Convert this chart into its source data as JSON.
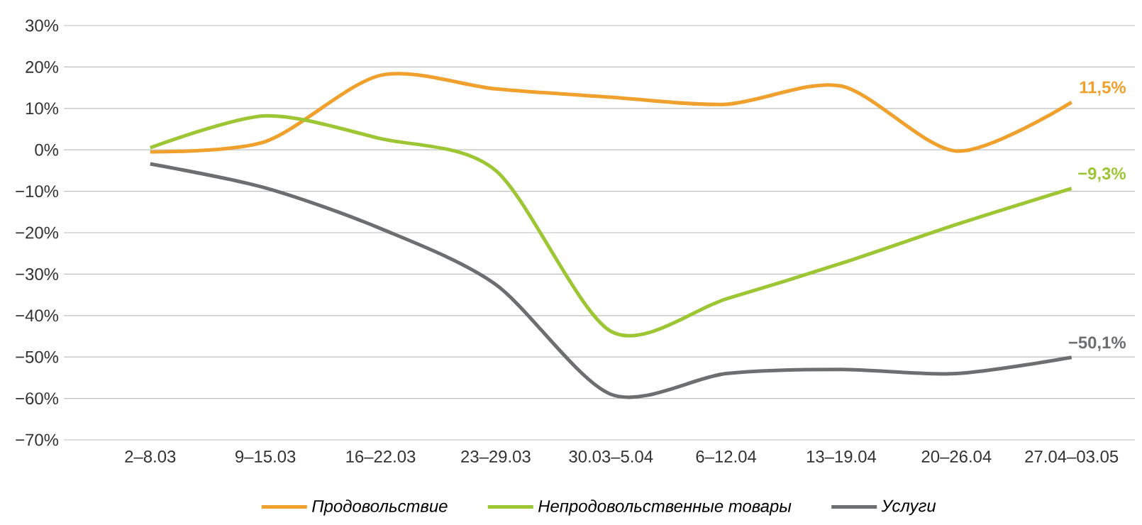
{
  "chart_data": {
    "type": "line",
    "categories": [
      "2–8.03",
      "9–15.03",
      "16–22.03",
      "23–29.03",
      "30.03–5.04",
      "6–12.04",
      "13–19.04",
      "20–26.04",
      "27.04–03.05"
    ],
    "series": [
      {
        "name": "Продовольствие",
        "color": "#f0a02c",
        "values": [
          -0.5,
          2,
          18,
          14.7,
          12.7,
          11,
          15.4,
          -0.3,
          11.5
        ],
        "value_labels": [
          null,
          null,
          null,
          null,
          null,
          null,
          null,
          null,
          "11,5%"
        ]
      },
      {
        "name": "Непродовольственные товары",
        "color": "#9cc634",
        "values": [
          0.5,
          8.2,
          2.7,
          -5,
          -43.8,
          -36,
          -27.4,
          -18,
          -9.3
        ],
        "value_labels": [
          null,
          null,
          null,
          null,
          null,
          null,
          null,
          null,
          "−9,3%"
        ]
      },
      {
        "name": "Услуги",
        "color": "#6d6e70",
        "values": [
          -3.4,
          -9.2,
          -19,
          -32.5,
          -59,
          -54,
          -53,
          -54,
          -50.1
        ],
        "value_labels": [
          null,
          null,
          null,
          null,
          null,
          null,
          null,
          null,
          "−50,1%"
        ]
      }
    ],
    "ylim": [
      -70,
      30
    ],
    "yticks": [
      {
        "value": -70,
        "label": "−70%"
      },
      {
        "value": -60,
        "label": "−60%"
      },
      {
        "value": -50,
        "label": "−50%"
      },
      {
        "value": -40,
        "label": "−40%"
      },
      {
        "value": -30,
        "label": "−30%"
      },
      {
        "value": -20,
        "label": "−20%"
      },
      {
        "value": -10,
        "label": "−10%"
      },
      {
        "value": 0,
        "label": "0%"
      },
      {
        "value": 10,
        "label": "10%"
      },
      {
        "value": 20,
        "label": "20%"
      },
      {
        "value": 30,
        "label": "30%"
      }
    ],
    "grid": "y",
    "legend": "bottom",
    "marker": "none",
    "line_style": "solid"
  }
}
